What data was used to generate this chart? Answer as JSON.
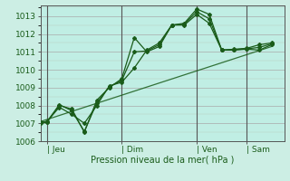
{
  "bg_color": "#c8e8d8",
  "plot_bg_color": "#c8f0e8",
  "grid_color": "#aaaaaa",
  "line_color": "#1a5c1a",
  "ylim": [
    1006,
    1013.6
  ],
  "yticks": [
    1006,
    1007,
    1008,
    1009,
    1010,
    1011,
    1012,
    1013
  ],
  "ylabel": "Pression niveau de la mer( hPa )",
  "day_labels": [
    "| Jeu",
    "| Dim",
    "| Ven",
    "| Sam"
  ],
  "day_positions": [
    1,
    13,
    25,
    33
  ],
  "xlim": [
    0,
    39
  ],
  "series1_x": [
    0,
    1,
    3,
    5,
    7,
    9,
    11,
    13,
    15,
    17,
    19,
    21,
    23,
    25,
    27,
    29,
    31,
    33,
    35,
    37
  ],
  "series1_y": [
    1007.0,
    1007.05,
    1008.0,
    1007.8,
    1006.5,
    1008.3,
    1009.0,
    1009.5,
    1011.8,
    1011.0,
    1011.3,
    1012.5,
    1012.6,
    1013.4,
    1013.1,
    1011.1,
    1011.15,
    1011.2,
    1011.4,
    1011.5
  ],
  "series2_x": [
    0,
    1,
    3,
    5,
    7,
    9,
    11,
    13,
    15,
    17,
    19,
    21,
    23,
    25,
    27,
    29,
    31,
    33,
    35,
    37
  ],
  "series2_y": [
    1007.05,
    1007.1,
    1007.9,
    1007.5,
    1007.0,
    1008.0,
    1009.1,
    1009.3,
    1010.1,
    1011.1,
    1011.5,
    1012.5,
    1012.5,
    1013.1,
    1012.6,
    1011.1,
    1011.1,
    1011.15,
    1011.1,
    1011.4
  ],
  "series3_x": [
    0,
    1,
    3,
    5,
    7,
    9,
    11,
    13,
    15,
    17,
    19,
    21,
    23,
    25,
    27,
    29,
    31,
    33,
    35,
    37
  ],
  "series3_y": [
    1007.05,
    1007.08,
    1008.05,
    1007.7,
    1006.55,
    1008.15,
    1009.05,
    1009.4,
    1011.0,
    1011.05,
    1011.4,
    1012.5,
    1012.55,
    1013.25,
    1012.85,
    1011.1,
    1011.12,
    1011.17,
    1011.25,
    1011.45
  ],
  "trend_x": [
    0,
    37
  ],
  "trend_y": [
    1007.1,
    1011.3
  ],
  "vline_x": [
    1,
    13,
    25,
    33
  ],
  "grid_minor_color": "#aaccaa",
  "grid_major_color": "#888888"
}
